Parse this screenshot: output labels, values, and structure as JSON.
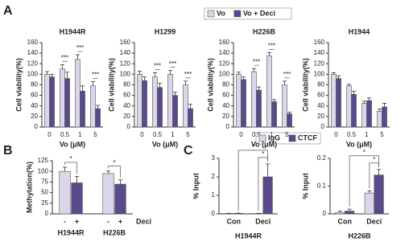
{
  "panel_labels": [
    "A",
    "B",
    "C"
  ],
  "chart_data": [
    {
      "type": "bar",
      "title": "H1944R",
      "ylabel": "Cell viability(%)",
      "xlabel": "Vo (μM)",
      "legend": "top",
      "categories": [
        "0",
        "0.5",
        "1",
        "5"
      ],
      "series": [
        {
          "name": "Vo",
          "color": "#dcd6ea",
          "values": [
            100,
            110,
            128,
            78
          ],
          "errors": [
            5,
            8,
            9,
            8
          ]
        },
        {
          "name": "Vo + Deci",
          "color": "#5b4a8b",
          "values": [
            95,
            92,
            68,
            35
          ],
          "errors": [
            5,
            12,
            10,
            6
          ]
        }
      ],
      "significance": [
        null,
        "***",
        "***",
        "***"
      ],
      "ylim": [
        0,
        160
      ],
      "yticks": [
        0,
        20,
        40,
        60,
        80,
        100,
        120,
        140,
        160
      ]
    },
    {
      "type": "bar",
      "title": "H1299",
      "ylabel": "Cell viability(%)",
      "xlabel": "Vo (μM)",
      "categories": [
        "0",
        "0.5",
        "1",
        "5"
      ],
      "series": [
        {
          "color": "#dcd6ea",
          "values": [
            100,
            95,
            100,
            80
          ],
          "errors": [
            6,
            8,
            7,
            7
          ]
        },
        {
          "color": "#5b4a8b",
          "values": [
            88,
            75,
            60,
            35
          ],
          "errors": [
            7,
            8,
            6,
            8
          ]
        }
      ],
      "significance": [
        null,
        "***",
        "***",
        "***"
      ],
      "ylim": [
        0,
        160
      ],
      "yticks": [
        0,
        20,
        40,
        60,
        80,
        100,
        120,
        140,
        160
      ]
    },
    {
      "type": "bar",
      "title": "H226B",
      "ylabel": "Cell viability(%)",
      "xlabel": "Vo (μM)",
      "categories": [
        "0",
        "0.5",
        "1",
        "5"
      ],
      "series": [
        {
          "color": "#dcd6ea",
          "values": [
            100,
            105,
            135,
            80
          ],
          "errors": [
            4,
            6,
            6,
            7
          ]
        },
        {
          "color": "#5b4a8b",
          "values": [
            90,
            70,
            48,
            25
          ],
          "errors": [
            5,
            6,
            4,
            3
          ]
        }
      ],
      "significance": [
        null,
        "***",
        "***",
        "***"
      ],
      "ylim": [
        0,
        160
      ],
      "yticks": [
        0,
        20,
        40,
        60,
        80,
        100,
        120,
        140,
        160
      ]
    },
    {
      "type": "bar",
      "title": "H1944",
      "ylabel": "Cell viability(%)",
      "xlabel": "Vo (μM)",
      "categories": [
        "0",
        "0.5",
        "1",
        "5"
      ],
      "series": [
        {
          "color": "#dcd6ea",
          "values": [
            100,
            78,
            45,
            30
          ],
          "errors": [
            3,
            3,
            4,
            4
          ]
        },
        {
          "color": "#5b4a8b",
          "values": [
            92,
            62,
            50,
            38
          ],
          "errors": [
            5,
            6,
            5,
            7
          ]
        }
      ],
      "ylim": [
        0,
        160
      ],
      "yticks": [
        0,
        20,
        40,
        60,
        80,
        100,
        120,
        140,
        160
      ]
    },
    {
      "type": "pairbar",
      "ylabel": "Methylation(%)",
      "treatment_label": "Deci",
      "groups": [
        "H1944R",
        "H226B"
      ],
      "categories": [
        "-",
        "+",
        "-",
        "+"
      ],
      "values": [
        100,
        73,
        95,
        70
      ],
      "errors": [
        10,
        15,
        6,
        10
      ],
      "colors": [
        "#dcd6ea",
        "#5b4a8b",
        "#dcd6ea",
        "#5b4a8b"
      ],
      "significance": [
        "*",
        "*"
      ],
      "ylim": [
        0,
        125
      ],
      "yticks": [
        0,
        25,
        50,
        75,
        100,
        125
      ]
    },
    {
      "type": "chip",
      "ylabel": "% Input",
      "xlabel": "H1944R",
      "legend": "top",
      "categories": [
        "Con",
        "Deci"
      ],
      "series": [
        {
          "name": "IgG",
          "color": "#dcd6ea",
          "values": [
            0.02,
            0.02
          ],
          "errors": [
            0.01,
            0.01
          ]
        },
        {
          "name": "CTCF",
          "color": "#5b4a8b",
          "values": [
            0.03,
            2.0
          ],
          "errors": [
            0.01,
            0.7
          ]
        }
      ],
      "significance": [
        "*",
        "*"
      ],
      "ylim": [
        0,
        3
      ],
      "yticks": [
        0,
        1,
        2,
        3
      ]
    },
    {
      "type": "chip",
      "ylabel": "% Input",
      "xlabel": "H226B",
      "categories": [
        "Con",
        "Deci"
      ],
      "series": [
        {
          "color": "#dcd6ea",
          "values": [
            0.005,
            0.075
          ],
          "errors": [
            0.005,
            0.008
          ]
        },
        {
          "color": "#5b4a8b",
          "values": [
            0.01,
            0.14
          ],
          "errors": [
            0.007,
            0.02
          ]
        }
      ],
      "significance": [
        "*",
        "*"
      ],
      "ylim": [
        0,
        0.2
      ],
      "yticks": [
        0,
        0.1,
        0.2
      ]
    }
  ]
}
